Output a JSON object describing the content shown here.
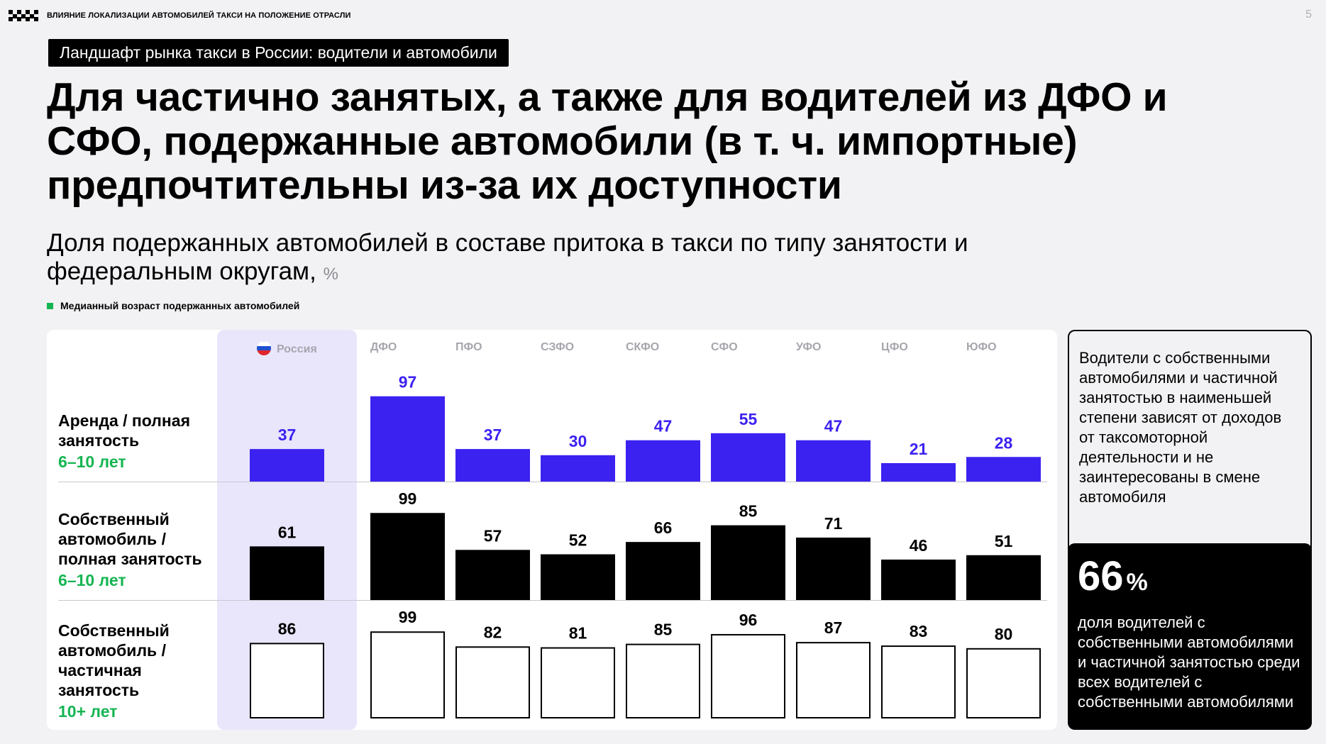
{
  "header": {
    "text": "ВЛИЯНИЕ ЛОКАЛИЗАЦИИ АВТОМОБИЛЕЙ ТАКСИ НА ПОЛОЖЕНИЕ ОТРАСЛИ",
    "page_number": "5"
  },
  "section_tag": "Ландшафт рынка такси в России: водители и автомобили",
  "title": "Для частично занятых, а также для водителей из ДФО и СФО, подержанные автомобили (в т. ч. импортные) предпочтительны из-за их доступности",
  "subtitle": {
    "text": "Доля подержанных автомобилей в составе притока в такси по типу занятости и федеральным округам,",
    "unit": "%"
  },
  "legend": {
    "label": "Медианный возраст подержанных автомобилей",
    "color": "#16b552"
  },
  "rows": [
    {
      "label": "Аренда / полная занятость",
      "age": "6–10 лет"
    },
    {
      "label": "Собственный автомобиль / полная занятость",
      "age": "6–10 лет"
    },
    {
      "label": "Собственный автомобиль / частичная занятость",
      "age": "10+ лет"
    }
  ],
  "colors": {
    "rent": "#3c22f0",
    "own_full": "#000000",
    "own_partial_fill": "#ffffff",
    "own_partial_stroke": "#000000",
    "russia_highlight": "#e9e6fc",
    "age": "#16b552"
  },
  "chart_data": {
    "type": "bar",
    "categories": [
      "Россия",
      "ДФО",
      "ПФО",
      "СЗФО",
      "СКФО",
      "СФО",
      "УФО",
      "ЦФО",
      "ЮФО"
    ],
    "series": [
      {
        "name": "Аренда / полная занятость",
        "values": [
          37,
          97,
          37,
          30,
          47,
          55,
          47,
          21,
          28
        ]
      },
      {
        "name": "Собственный автомобиль / полная занятость",
        "values": [
          61,
          99,
          57,
          52,
          66,
          85,
          71,
          46,
          51
        ]
      },
      {
        "name": "Собственный автомобиль / частичная занятость",
        "values": [
          86,
          99,
          82,
          81,
          85,
          96,
          87,
          83,
          80
        ]
      }
    ],
    "ylim": [
      0,
      100
    ]
  },
  "side": {
    "text": "Водители с собственными автомобилями и частичной занятостью в наименьшей степени зависят от доходов от таксомоторной деятельности и не заинтересованы в смене автомобиля",
    "stat_value": "66",
    "stat_unit": "%",
    "stat_desc": "доля водителей с собственными автомобилями и частичной занятостью среди всех водителей с собственными автомобилями"
  }
}
